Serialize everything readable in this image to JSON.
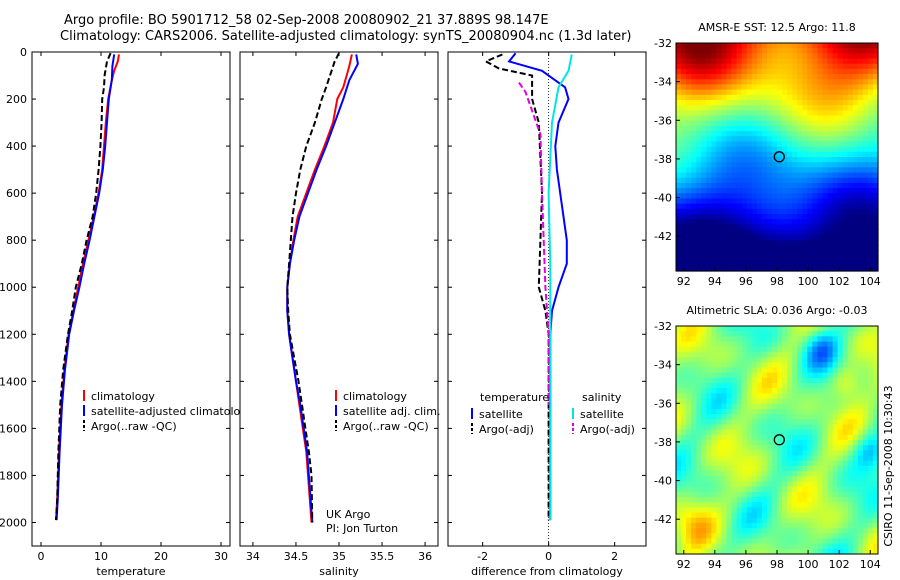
{
  "header": {
    "line1": "Argo profile: BO 5901712_58 02-Sep-2008 20080902_21 37.889S 98.147E",
    "line2": "Climatology: CARS2006. Satellite-adjusted climatology: synTS_20080904.nc (1.3d later)"
  },
  "side_label": "CSIRO 11-Sep-2008 10:30:43",
  "credit": {
    "line1": "UK Argo",
    "line2": "PI: Jon Turton"
  },
  "colors": {
    "climatology": "#ff0000",
    "satellite": "#0000ff",
    "argo": "#000000",
    "sal_satellite": "#00e5e5",
    "sal_argo": "#e000e0",
    "marker": "#000000"
  },
  "chart_data": [
    {
      "type": "line",
      "xlabel": "temperature",
      "xlim": [
        -1.5,
        31.5
      ],
      "xticks": [
        0,
        10,
        20,
        30
      ],
      "ylim": [
        2100,
        0
      ],
      "yticks": [
        0,
        200,
        400,
        600,
        800,
        1000,
        1200,
        1400,
        1600,
        1800,
        2000
      ],
      "grid": false,
      "legend_position": "lower-right",
      "series": [
        {
          "name": "climatology",
          "color": "#ff0000",
          "dash": "",
          "points": [
            [
              13.0,
              10
            ],
            [
              12.8,
              40
            ],
            [
              12.2,
              80
            ],
            [
              11.8,
              120
            ],
            [
              11.2,
              200
            ],
            [
              10.8,
              300
            ],
            [
              10.5,
              400
            ],
            [
              10.2,
              500
            ],
            [
              9.6,
              600
            ],
            [
              8.8,
              700
            ],
            [
              7.9,
              800
            ],
            [
              7.0,
              900
            ],
            [
              6.2,
              1000
            ],
            [
              5.4,
              1100
            ],
            [
              4.6,
              1200
            ],
            [
              3.9,
              1350
            ],
            [
              3.4,
              1500
            ],
            [
              3.0,
              1700
            ],
            [
              2.7,
              1900
            ],
            [
              2.5,
              1990
            ]
          ]
        },
        {
          "name": "satellite-adjusted climatology",
          "color": "#0000ff",
          "dash": "",
          "points": [
            [
              12.2,
              10
            ],
            [
              11.9,
              60
            ],
            [
              11.8,
              120
            ],
            [
              11.3,
              200
            ],
            [
              11.0,
              300
            ],
            [
              10.7,
              400
            ],
            [
              10.3,
              500
            ],
            [
              9.7,
              600
            ],
            [
              8.9,
              700
            ],
            [
              8.1,
              800
            ],
            [
              7.2,
              900
            ],
            [
              6.4,
              1000
            ],
            [
              5.5,
              1100
            ],
            [
              4.7,
              1200
            ],
            [
              4.0,
              1350
            ],
            [
              3.5,
              1500
            ],
            [
              3.1,
              1700
            ],
            [
              2.8,
              1900
            ],
            [
              2.6,
              1990
            ]
          ]
        },
        {
          "name": "Argo(..raw -QC)",
          "color": "#000000",
          "dash": "6,3",
          "points": [
            [
              11.6,
              5
            ],
            [
              11.0,
              40
            ],
            [
              10.6,
              100
            ],
            [
              10.5,
              150
            ],
            [
              10.2,
              200
            ],
            [
              10.1,
              300
            ],
            [
              9.9,
              400
            ],
            [
              9.6,
              500
            ],
            [
              9.2,
              600
            ],
            [
              8.6,
              700
            ],
            [
              7.6,
              800
            ],
            [
              6.8,
              900
            ],
            [
              5.8,
              1000
            ],
            [
              5.2,
              1100
            ],
            [
              4.5,
              1200
            ],
            [
              3.7,
              1350
            ],
            [
              3.2,
              1500
            ],
            [
              2.9,
              1700
            ],
            [
              2.7,
              1900
            ],
            [
              2.5,
              1990
            ]
          ]
        }
      ],
      "legend": [
        "climatology",
        "satellite-adjusted climatology",
        "Argo(..raw -QC)"
      ]
    },
    {
      "type": "line",
      "xlabel": "salinity",
      "xlim": [
        33.85,
        36.15
      ],
      "xticks": [
        34,
        34.5,
        35,
        35.5,
        36
      ],
      "ylim": [
        2100,
        0
      ],
      "yticks": [
        0,
        200,
        400,
        600,
        800,
        1000,
        1200,
        1400,
        1600,
        1800,
        2000
      ],
      "grid": false,
      "legend_position": "lower-right",
      "series": [
        {
          "name": "climatology",
          "color": "#ff0000",
          "dash": "",
          "points": [
            [
              35.15,
              10
            ],
            [
              35.12,
              60
            ],
            [
              35.05,
              150
            ],
            [
              34.98,
              200
            ],
            [
              34.93,
              300
            ],
            [
              34.83,
              400
            ],
            [
              34.72,
              500
            ],
            [
              34.62,
              600
            ],
            [
              34.52,
              700
            ],
            [
              34.47,
              800
            ],
            [
              34.43,
              900
            ],
            [
              34.4,
              1000
            ],
            [
              34.4,
              1100
            ],
            [
              34.42,
              1200
            ],
            [
              34.46,
              1300
            ],
            [
              34.5,
              1400
            ],
            [
              34.54,
              1500
            ],
            [
              34.58,
              1600
            ],
            [
              34.62,
              1700
            ],
            [
              34.65,
              1850
            ],
            [
              34.68,
              2000
            ]
          ]
        },
        {
          "name": "satellite adj. clim.",
          "color": "#0000ff",
          "dash": "",
          "points": [
            [
              35.2,
              10
            ],
            [
              35.22,
              50
            ],
            [
              35.12,
              120
            ],
            [
              35.05,
              200
            ],
            [
              34.95,
              300
            ],
            [
              34.85,
              400
            ],
            [
              34.74,
              500
            ],
            [
              34.64,
              600
            ],
            [
              34.54,
              700
            ],
            [
              34.48,
              800
            ],
            [
              34.43,
              900
            ],
            [
              34.4,
              1000
            ],
            [
              34.4,
              1100
            ],
            [
              34.42,
              1200
            ],
            [
              34.46,
              1300
            ],
            [
              34.5,
              1400
            ],
            [
              34.55,
              1500
            ],
            [
              34.59,
              1600
            ],
            [
              34.63,
              1700
            ],
            [
              34.66,
              1850
            ],
            [
              34.69,
              2000
            ]
          ]
        },
        {
          "name": "Argo(..raw -QC)",
          "color": "#000000",
          "dash": "6,3",
          "points": [
            [
              35.0,
              5
            ],
            [
              34.95,
              40
            ],
            [
              34.85,
              150
            ],
            [
              34.8,
              200
            ],
            [
              34.72,
              300
            ],
            [
              34.62,
              400
            ],
            [
              34.55,
              500
            ],
            [
              34.5,
              600
            ],
            [
              34.46,
              700
            ],
            [
              34.44,
              800
            ],
            [
              34.42,
              900
            ],
            [
              34.4,
              1000
            ],
            [
              34.41,
              1100
            ],
            [
              34.43,
              1200
            ],
            [
              34.48,
              1300
            ],
            [
              34.53,
              1400
            ],
            [
              34.57,
              1500
            ],
            [
              34.61,
              1600
            ],
            [
              34.65,
              1700
            ],
            [
              34.68,
              1800
            ],
            [
              34.69,
              2000
            ]
          ]
        }
      ],
      "legend": [
        "climatology",
        "satellite adj. clim.",
        "Argo(..raw -QC)"
      ]
    },
    {
      "type": "line",
      "xlabel": "difference from climatology",
      "xlim": [
        -3.05,
        2.95
      ],
      "xticks": [
        -2,
        0,
        2
      ],
      "ylim": [
        2100,
        0
      ],
      "yticks": [
        0,
        200,
        400,
        600,
        800,
        1000,
        1200,
        1400,
        1600,
        1800,
        2000
      ],
      "grid": false,
      "legend_position": "lower-right",
      "legend_headers": [
        "temperature",
        "salinity"
      ],
      "series": [
        {
          "name": "satellite",
          "group": "temperature",
          "color": "#0000ff",
          "dash": "",
          "points": [
            [
              -1.0,
              5
            ],
            [
              -1.2,
              40
            ],
            [
              -0.2,
              80
            ],
            [
              0.5,
              150
            ],
            [
              0.6,
              200
            ],
            [
              0.3,
              300
            ],
            [
              0.2,
              400
            ],
            [
              0.25,
              500
            ],
            [
              0.35,
              600
            ],
            [
              0.45,
              700
            ],
            [
              0.55,
              800
            ],
            [
              0.55,
              900
            ],
            [
              0.3,
              1000
            ],
            [
              0.1,
              1100
            ],
            [
              0.05,
              1200
            ],
            [
              0.05,
              1400
            ],
            [
              0.05,
              1600
            ],
            [
              0.05,
              1800
            ],
            [
              0.05,
              1990
            ]
          ]
        },
        {
          "name": "Argo(-adj)",
          "group": "temperature",
          "color": "#000000",
          "dash": "6,3",
          "points": [
            [
              -1.4,
              10
            ],
            [
              -1.9,
              40
            ],
            [
              -1.5,
              70
            ],
            [
              -0.5,
              100
            ],
            [
              -0.5,
              200
            ],
            [
              -0.3,
              300
            ],
            [
              -0.2,
              600
            ],
            [
              -0.25,
              800
            ],
            [
              -0.3,
              1000
            ],
            [
              -0.1,
              1100
            ],
            [
              0.0,
              1200
            ],
            [
              0.0,
              1990
            ]
          ]
        },
        {
          "name": "satellite",
          "group": "salinity",
          "color": "#00e5e5",
          "dash": "",
          "points": [
            [
              0.7,
              10
            ],
            [
              0.6,
              80
            ],
            [
              0.3,
              150
            ],
            [
              0.1,
              300
            ],
            [
              0.0,
              600
            ],
            [
              0.05,
              900
            ],
            [
              0.05,
              1200
            ],
            [
              0.05,
              1500
            ],
            [
              0.05,
              1800
            ],
            [
              0.05,
              1990
            ]
          ]
        },
        {
          "name": "Argo(-adj)",
          "group": "salinity",
          "color": "#e000e0",
          "dash": "6,3",
          "points": [
            [
              -0.9,
              130
            ],
            [
              -0.7,
              170
            ],
            [
              -0.25,
              350
            ],
            [
              -0.2,
              600
            ],
            [
              -0.15,
              800
            ],
            [
              -0.1,
              1000
            ],
            [
              0.0,
              1200
            ],
            [
              0.0,
              1500
            ]
          ]
        }
      ],
      "legend": [
        "satellite",
        "Argo(-adj)",
        "satellite",
        "Argo(-adj)"
      ]
    },
    {
      "type": "heatmap",
      "title": "AMSR-E SST: 12.5 Argo: 11.8",
      "xlim": [
        91.5,
        104.5
      ],
      "xticks": [
        92,
        94,
        96,
        98,
        100,
        102,
        104
      ],
      "ylim": [
        -43.8,
        -32
      ],
      "yticks": [
        -32,
        -34,
        -36,
        -38,
        -40,
        -42
      ],
      "marker": {
        "lon": 98.147,
        "lat": -37.889
      },
      "field": "sst"
    },
    {
      "type": "heatmap",
      "title": "Altimetric SLA: 0.036 Argo: -0.03",
      "xlim": [
        91.5,
        104.5
      ],
      "xticks": [
        92,
        94,
        96,
        98,
        100,
        102,
        104
      ],
      "ylim": [
        -43.8,
        -32
      ],
      "yticks": [
        -32,
        -34,
        -36,
        -38,
        -40,
        -42
      ],
      "marker": {
        "lon": 98.147,
        "lat": -37.889
      },
      "field": "sla"
    }
  ]
}
